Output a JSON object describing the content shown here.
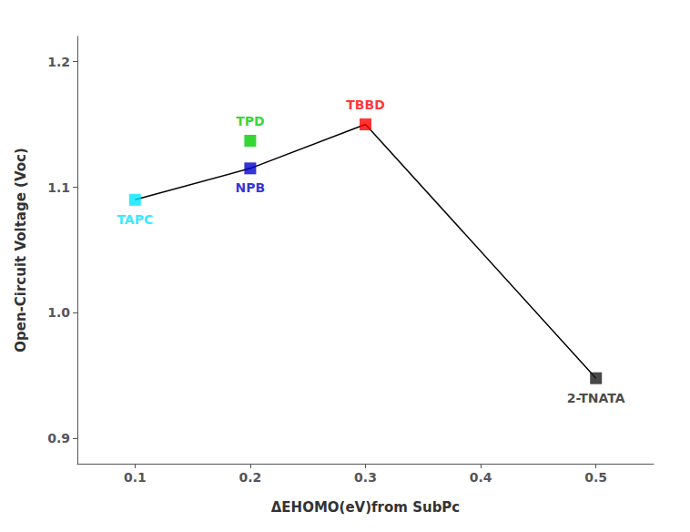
{
  "chart_data": {
    "type": "scatter",
    "x_label": "ΔEHOMO(eV)from SubPc",
    "y_label": "Open-Circuit Voltage (Voc)",
    "series": [
      {
        "name": "TAPC",
        "color": "#00E5FF",
        "marker": "square",
        "x": [
          0.1
        ],
        "values": [
          1.09
        ]
      },
      {
        "name": "NPB",
        "color": "#0000CC",
        "marker": "square",
        "x": [
          0.2
        ],
        "values": [
          1.115
        ]
      },
      {
        "name": "TPD",
        "color": "#00CC00",
        "marker": "square",
        "x": [
          0.2
        ],
        "values": [
          1.137
        ]
      },
      {
        "name": "TBBD",
        "color": "#FF0000",
        "marker": "square",
        "x": [
          0.3
        ],
        "values": [
          1.15
        ]
      },
      {
        "name": "2-TNATA",
        "color": "#1a1a1a",
        "marker": "square",
        "x": [
          0.5
        ],
        "values": [
          0.948
        ]
      },
      {
        "type": "line",
        "color": "#000000",
        "line_style": "solid",
        "x": [
          0.1,
          0.2,
          0.3,
          0.5
        ],
        "values": [
          1.09,
          1.115,
          1.15,
          0.948
        ]
      }
    ],
    "xlim": [
      0.05,
      0.55
    ],
    "ylim": [
      0.88,
      1.22
    ],
    "xticks": [
      0.1,
      0.2,
      0.3,
      0.4,
      0.5
    ],
    "yticks": [
      0.9,
      {
        "value": 1,
        "label": "1.0"
      },
      1.1,
      1.2
    ],
    "grid": false
  }
}
